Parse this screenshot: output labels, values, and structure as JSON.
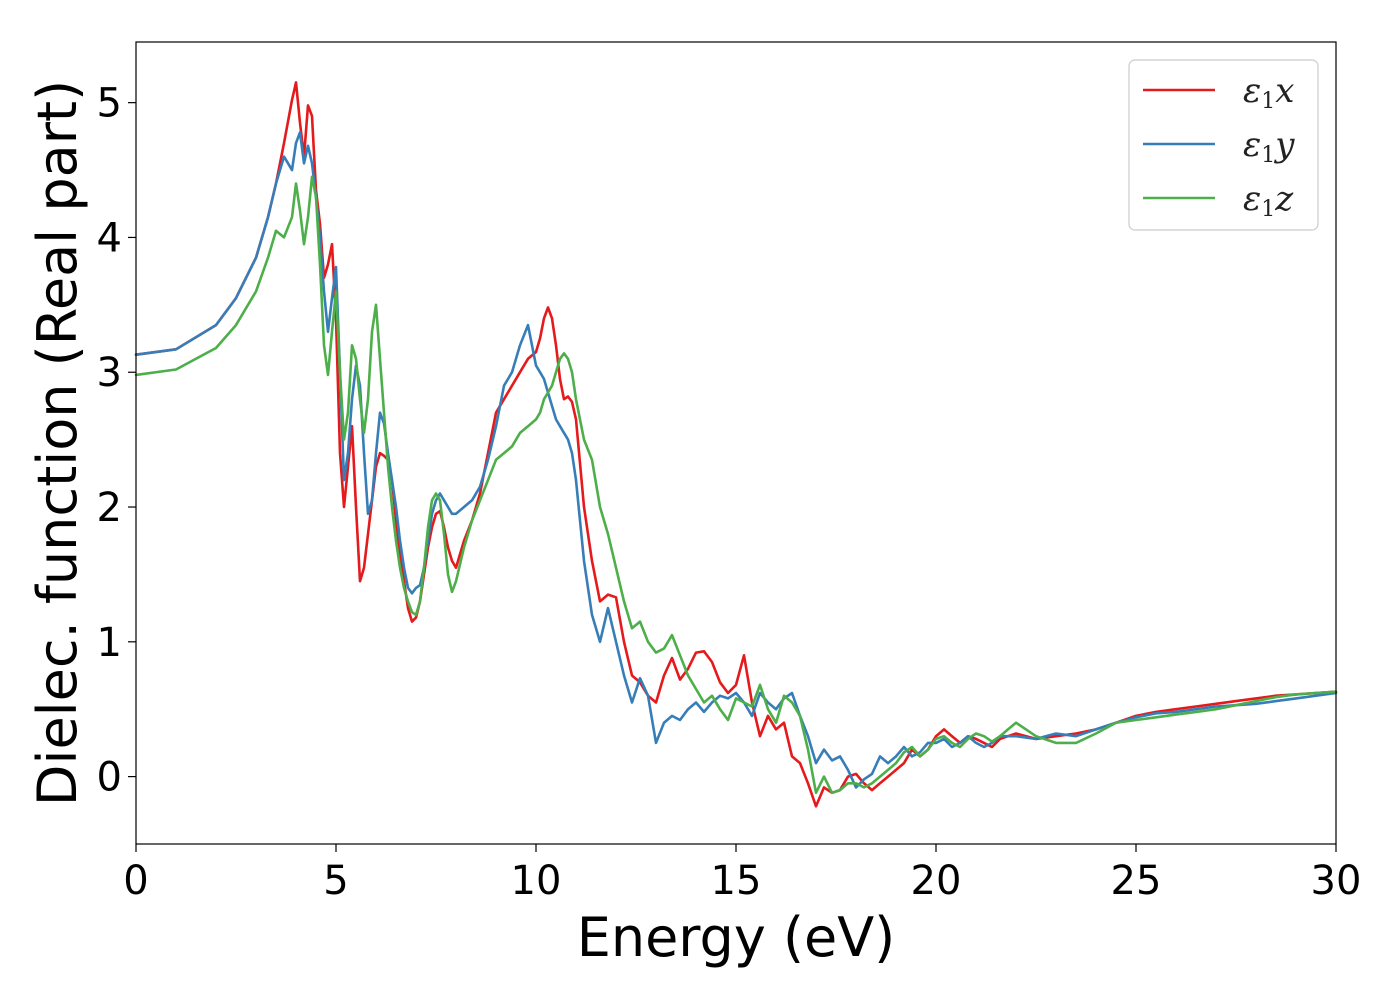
{
  "chart_data": {
    "type": "line",
    "xlabel": "Energy (eV)",
    "ylabel": "Dielec. function (Real part)",
    "xlim": [
      0,
      30
    ],
    "ylim": [
      -0.5,
      5.45
    ],
    "xticks": [
      0,
      5,
      10,
      15,
      20,
      25,
      30
    ],
    "yticks": [
      0,
      1,
      2,
      3,
      4,
      5
    ],
    "xtick_labels": [
      "0",
      "5",
      "10",
      "15",
      "20",
      "25",
      "30"
    ],
    "ytick_labels": [
      "0",
      "1",
      "2",
      "3",
      "4",
      "5"
    ],
    "grid": false,
    "legend_position": "top-right",
    "series": [
      {
        "name": "ε1x",
        "legend_base": "ε",
        "legend_sub": "1",
        "legend_var": "x",
        "color": "#e41a1c",
        "x": [
          0,
          1,
          2,
          2.5,
          3,
          3.3,
          3.5,
          3.7,
          3.9,
          4.0,
          4.1,
          4.2,
          4.3,
          4.4,
          4.5,
          4.6,
          4.7,
          4.8,
          4.9,
          5.0,
          5.1,
          5.2,
          5.3,
          5.4,
          5.5,
          5.6,
          5.7,
          5.8,
          5.9,
          6.0,
          6.1,
          6.2,
          6.3,
          6.4,
          6.5,
          6.6,
          6.7,
          6.8,
          6.9,
          7.0,
          7.1,
          7.2,
          7.3,
          7.4,
          7.5,
          7.6,
          7.7,
          7.8,
          7.9,
          8.0,
          8.2,
          8.4,
          8.6,
          8.8,
          9.0,
          9.2,
          9.4,
          9.6,
          9.8,
          10.0,
          10.1,
          10.2,
          10.3,
          10.4,
          10.5,
          10.6,
          10.7,
          10.8,
          10.9,
          11.0,
          11.2,
          11.4,
          11.6,
          11.8,
          12.0,
          12.2,
          12.4,
          12.6,
          12.8,
          13.0,
          13.2,
          13.4,
          13.6,
          13.8,
          14.0,
          14.2,
          14.4,
          14.6,
          14.8,
          15.0,
          15.2,
          15.4,
          15.6,
          15.8,
          16.0,
          16.2,
          16.4,
          16.6,
          16.8,
          17.0,
          17.2,
          17.4,
          17.6,
          17.8,
          18.0,
          18.2,
          18.4,
          18.6,
          18.8,
          19.0,
          19.2,
          19.4,
          19.6,
          19.8,
          20.0,
          20.2,
          20.4,
          20.6,
          20.8,
          21.0,
          21.2,
          21.4,
          21.6,
          21.8,
          22.0,
          22.5,
          23.0,
          23.5,
          24.0,
          24.5,
          25.0,
          25.5,
          26.0,
          26.5,
          27.0,
          27.5,
          28.0,
          28.5,
          29.0,
          29.5,
          30.0
        ],
        "y": [
          3.13,
          3.17,
          3.35,
          3.55,
          3.85,
          4.15,
          4.4,
          4.7,
          5.02,
          5.15,
          4.85,
          4.6,
          4.98,
          4.9,
          4.35,
          4.1,
          3.7,
          3.8,
          3.95,
          3.4,
          2.4,
          2.0,
          2.3,
          2.6,
          2.0,
          1.45,
          1.55,
          1.8,
          2.05,
          2.3,
          2.4,
          2.38,
          2.35,
          2.2,
          1.9,
          1.65,
          1.45,
          1.25,
          1.15,
          1.18,
          1.3,
          1.5,
          1.7,
          1.85,
          1.95,
          1.97,
          1.85,
          1.7,
          1.6,
          1.55,
          1.75,
          1.9,
          2.1,
          2.4,
          2.7,
          2.8,
          2.9,
          3.0,
          3.1,
          3.15,
          3.25,
          3.4,
          3.48,
          3.4,
          3.2,
          2.95,
          2.8,
          2.82,
          2.78,
          2.65,
          2.0,
          1.6,
          1.3,
          1.35,
          1.33,
          1.0,
          0.75,
          0.7,
          0.6,
          0.55,
          0.75,
          0.88,
          0.72,
          0.8,
          0.92,
          0.93,
          0.85,
          0.7,
          0.62,
          0.68,
          0.9,
          0.55,
          0.3,
          0.45,
          0.35,
          0.4,
          0.15,
          0.1,
          -0.05,
          -0.22,
          -0.08,
          -0.12,
          -0.1,
          0.0,
          0.02,
          -0.05,
          -0.1,
          -0.05,
          0.0,
          0.05,
          0.1,
          0.2,
          0.15,
          0.2,
          0.3,
          0.35,
          0.3,
          0.25,
          0.3,
          0.28,
          0.25,
          0.22,
          0.28,
          0.3,
          0.32,
          0.28,
          0.3,
          0.32,
          0.35,
          0.4,
          0.45,
          0.48,
          0.5,
          0.52,
          0.54,
          0.56,
          0.58,
          0.6,
          0.61,
          0.62,
          0.63
        ]
      },
      {
        "name": "ε1y",
        "legend_base": "ε",
        "legend_sub": "1",
        "legend_var": "y",
        "color": "#377eb8",
        "x": [
          0,
          1,
          2,
          2.5,
          3,
          3.3,
          3.5,
          3.7,
          3.9,
          4.0,
          4.1,
          4.2,
          4.3,
          4.4,
          4.5,
          4.6,
          4.7,
          4.8,
          4.9,
          5.0,
          5.1,
          5.2,
          5.3,
          5.4,
          5.5,
          5.6,
          5.7,
          5.8,
          5.9,
          6.0,
          6.1,
          6.2,
          6.3,
          6.4,
          6.5,
          6.6,
          6.7,
          6.8,
          6.9,
          7.0,
          7.1,
          7.2,
          7.3,
          7.4,
          7.5,
          7.6,
          7.7,
          7.8,
          7.9,
          8.0,
          8.2,
          8.4,
          8.6,
          8.8,
          9.0,
          9.2,
          9.4,
          9.6,
          9.8,
          10.0,
          10.1,
          10.2,
          10.3,
          10.4,
          10.5,
          10.6,
          10.7,
          10.8,
          10.9,
          11.0,
          11.2,
          11.4,
          11.6,
          11.8,
          12.0,
          12.2,
          12.4,
          12.6,
          12.8,
          13.0,
          13.2,
          13.4,
          13.6,
          13.8,
          14.0,
          14.2,
          14.4,
          14.6,
          14.8,
          15.0,
          15.2,
          15.4,
          15.6,
          15.8,
          16.0,
          16.2,
          16.4,
          16.6,
          16.8,
          17.0,
          17.2,
          17.4,
          17.6,
          17.8,
          18.0,
          18.2,
          18.4,
          18.6,
          18.8,
          19.0,
          19.2,
          19.4,
          19.6,
          19.8,
          20.0,
          20.2,
          20.4,
          20.6,
          20.8,
          21.0,
          21.2,
          21.4,
          21.6,
          21.8,
          22.0,
          22.5,
          23.0,
          23.5,
          24.0,
          24.5,
          25.0,
          25.5,
          26.0,
          26.5,
          27.0,
          27.5,
          28.0,
          28.5,
          29.0,
          29.5,
          30.0
        ],
        "y": [
          3.13,
          3.17,
          3.35,
          3.55,
          3.85,
          4.15,
          4.4,
          4.6,
          4.5,
          4.7,
          4.78,
          4.55,
          4.68,
          4.55,
          4.3,
          4.0,
          3.6,
          3.3,
          3.55,
          3.78,
          3.0,
          2.2,
          2.4,
          2.8,
          3.05,
          2.9,
          2.4,
          1.95,
          2.05,
          2.4,
          2.7,
          2.62,
          2.4,
          2.2,
          2.0,
          1.75,
          1.55,
          1.4,
          1.36,
          1.4,
          1.42,
          1.55,
          1.75,
          1.95,
          2.05,
          2.1,
          2.05,
          2.0,
          1.95,
          1.95,
          2.0,
          2.05,
          2.15,
          2.35,
          2.6,
          2.9,
          3.0,
          3.2,
          3.35,
          3.05,
          3.0,
          2.95,
          2.85,
          2.75,
          2.65,
          2.6,
          2.55,
          2.5,
          2.4,
          2.2,
          1.6,
          1.2,
          1.0,
          1.25,
          1.0,
          0.75,
          0.55,
          0.73,
          0.6,
          0.25,
          0.4,
          0.45,
          0.42,
          0.5,
          0.55,
          0.48,
          0.55,
          0.6,
          0.58,
          0.62,
          0.55,
          0.45,
          0.62,
          0.55,
          0.5,
          0.58,
          0.62,
          0.45,
          0.3,
          0.1,
          0.2,
          0.12,
          0.15,
          0.05,
          -0.08,
          -0.02,
          0.02,
          0.15,
          0.1,
          0.15,
          0.22,
          0.15,
          0.18,
          0.25,
          0.25,
          0.28,
          0.22,
          0.25,
          0.3,
          0.25,
          0.22,
          0.25,
          0.3,
          0.3,
          0.3,
          0.28,
          0.32,
          0.3,
          0.35,
          0.4,
          0.44,
          0.47,
          0.48,
          0.5,
          0.52,
          0.53,
          0.54,
          0.56,
          0.58,
          0.6,
          0.62
        ]
      },
      {
        "name": "ε1z",
        "legend_base": "ε",
        "legend_sub": "1",
        "legend_var": "z",
        "color": "#4daf4a",
        "x": [
          0,
          1,
          2,
          2.5,
          3,
          3.3,
          3.5,
          3.7,
          3.9,
          4.0,
          4.1,
          4.2,
          4.3,
          4.4,
          4.5,
          4.6,
          4.7,
          4.8,
          4.9,
          5.0,
          5.1,
          5.2,
          5.3,
          5.4,
          5.5,
          5.6,
          5.7,
          5.8,
          5.9,
          6.0,
          6.1,
          6.2,
          6.3,
          6.4,
          6.5,
          6.6,
          6.7,
          6.8,
          6.9,
          7.0,
          7.1,
          7.2,
          7.3,
          7.4,
          7.5,
          7.6,
          7.7,
          7.8,
          7.9,
          8.0,
          8.2,
          8.4,
          8.6,
          8.8,
          9.0,
          9.2,
          9.4,
          9.6,
          9.8,
          10.0,
          10.1,
          10.2,
          10.3,
          10.4,
          10.5,
          10.6,
          10.7,
          10.8,
          10.9,
          11.0,
          11.2,
          11.4,
          11.6,
          11.8,
          12.0,
          12.2,
          12.4,
          12.6,
          12.8,
          13.0,
          13.2,
          13.4,
          13.6,
          13.8,
          14.0,
          14.2,
          14.4,
          14.6,
          14.8,
          15.0,
          15.2,
          15.4,
          15.6,
          15.8,
          16.0,
          16.2,
          16.4,
          16.6,
          16.8,
          17.0,
          17.2,
          17.4,
          17.6,
          17.8,
          18.0,
          18.2,
          18.4,
          18.6,
          18.8,
          19.0,
          19.2,
          19.4,
          19.6,
          19.8,
          20.0,
          20.2,
          20.4,
          20.6,
          20.8,
          21.0,
          21.2,
          21.4,
          21.6,
          21.8,
          22.0,
          22.5,
          23.0,
          23.5,
          24.0,
          24.5,
          25.0,
          25.5,
          26.0,
          26.5,
          27.0,
          27.5,
          28.0,
          28.5,
          29.0,
          29.5,
          30.0
        ],
        "y": [
          2.98,
          3.02,
          3.18,
          3.35,
          3.6,
          3.85,
          4.05,
          4.0,
          4.15,
          4.4,
          4.2,
          3.95,
          4.15,
          4.45,
          4.3,
          3.8,
          3.2,
          2.98,
          3.3,
          3.6,
          3.0,
          2.5,
          2.7,
          3.2,
          3.1,
          2.8,
          2.55,
          2.8,
          3.3,
          3.5,
          3.1,
          2.7,
          2.3,
          2.0,
          1.75,
          1.55,
          1.4,
          1.3,
          1.22,
          1.2,
          1.3,
          1.55,
          1.85,
          2.05,
          2.1,
          2.05,
          1.8,
          1.5,
          1.37,
          1.45,
          1.7,
          1.9,
          2.05,
          2.2,
          2.35,
          2.4,
          2.45,
          2.55,
          2.6,
          2.65,
          2.7,
          2.8,
          2.85,
          2.9,
          3.0,
          3.1,
          3.14,
          3.1,
          3.0,
          2.8,
          2.5,
          2.35,
          2.0,
          1.8,
          1.55,
          1.3,
          1.1,
          1.15,
          1.0,
          0.92,
          0.95,
          1.05,
          0.9,
          0.75,
          0.65,
          0.55,
          0.6,
          0.5,
          0.42,
          0.58,
          0.55,
          0.52,
          0.68,
          0.5,
          0.4,
          0.6,
          0.55,
          0.45,
          0.2,
          -0.12,
          0.0,
          -0.12,
          -0.1,
          -0.05,
          -0.05,
          -0.08,
          -0.05,
          0.0,
          0.05,
          0.1,
          0.18,
          0.22,
          0.15,
          0.2,
          0.28,
          0.3,
          0.25,
          0.22,
          0.28,
          0.32,
          0.3,
          0.26,
          0.3,
          0.35,
          0.4,
          0.3,
          0.25,
          0.25,
          0.32,
          0.4,
          0.42,
          0.44,
          0.46,
          0.48,
          0.5,
          0.53,
          0.56,
          0.59,
          0.61,
          0.62,
          0.63
        ]
      }
    ]
  }
}
